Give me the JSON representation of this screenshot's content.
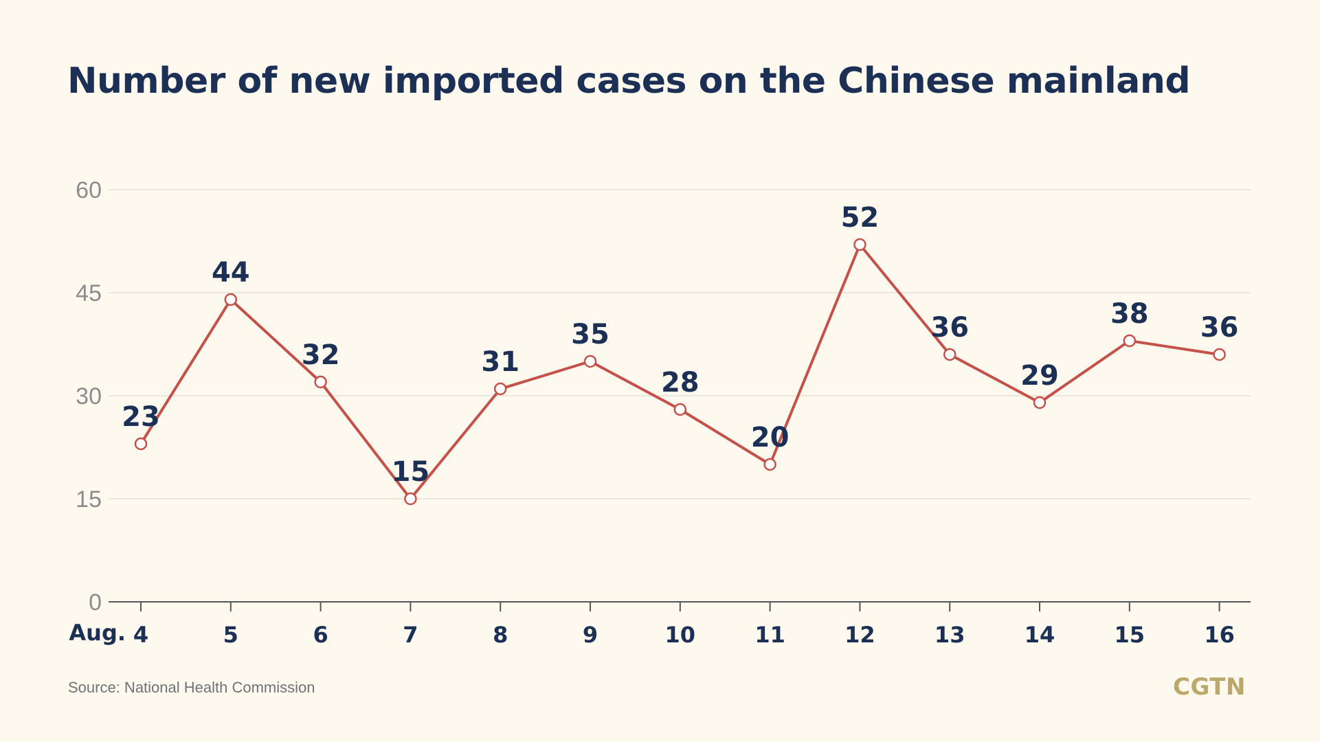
{
  "chart_data": {
    "type": "line",
    "title": "Number of new imported cases on the Chinese mainland",
    "x_prefix": "Aug.",
    "categories": [
      "4",
      "5",
      "6",
      "7",
      "8",
      "9",
      "10",
      "11",
      "12",
      "13",
      "14",
      "15",
      "16"
    ],
    "series": [
      {
        "values": [
          23,
          44,
          32,
          15,
          31,
          35,
          28,
          20,
          52,
          36,
          29,
          38,
          36
        ]
      }
    ],
    "y_ticks": [
      0,
      15,
      30,
      45,
      60
    ],
    "ylim": [
      0,
      60
    ],
    "grid": true,
    "colors": {
      "line": "#c4524a",
      "marker_fill": "#ffffff",
      "title": "#1c2f55",
      "grid": "#e5e1d4",
      "axis": "#555555",
      "background": "#fdf9ee"
    }
  },
  "footer": {
    "source": "Source: National Health Commission",
    "logo": "CGTN"
  }
}
